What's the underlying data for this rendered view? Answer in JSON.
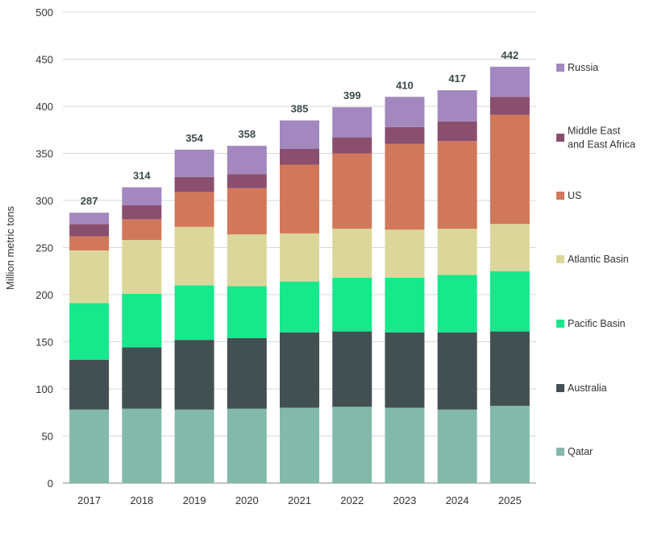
{
  "chart_data": {
    "type": "bar",
    "stacked": true,
    "ylabel": "Million metric tons",
    "ylim": [
      0,
      500
    ],
    "yticks": [
      0,
      50,
      100,
      150,
      200,
      250,
      300,
      350,
      400,
      450,
      500
    ],
    "grid": true,
    "legend_position": "right",
    "categories": [
      "2017",
      "2018",
      "2019",
      "2020",
      "2021",
      "2022",
      "2023",
      "2024",
      "2025"
    ],
    "totals": [
      287,
      314,
      354,
      358,
      385,
      399,
      410,
      417,
      442
    ],
    "series": [
      {
        "name": "Qatar",
        "color": "#82b9ab",
        "values": [
          78,
          79,
          78,
          79,
          80,
          81,
          80,
          78,
          82
        ]
      },
      {
        "name": "Australia",
        "color": "#435052",
        "values": [
          53,
          65,
          74,
          75,
          80,
          80,
          80,
          82,
          79
        ]
      },
      {
        "name": "Pacific Basin",
        "color": "#17e88c",
        "values": [
          60,
          57,
          58,
          55,
          54,
          57,
          58,
          61,
          64
        ]
      },
      {
        "name": "Atlantic Basin",
        "color": "#dbd79a",
        "values": [
          56,
          57,
          62,
          55,
          51,
          52,
          51,
          49,
          50
        ]
      },
      {
        "name": "US",
        "color": "#d2785a",
        "values": [
          15,
          22,
          37,
          49,
          73,
          80,
          91,
          93,
          116
        ]
      },
      {
        "name": "Middle East\nand East Africa",
        "color": "#8a4f6e",
        "values": [
          13,
          15,
          16,
          15,
          17,
          17,
          18,
          21,
          19
        ]
      },
      {
        "name": "Russia",
        "color": "#a387bf",
        "values": [
          12,
          19,
          29,
          30,
          30,
          32,
          32,
          33,
          32
        ]
      }
    ]
  }
}
